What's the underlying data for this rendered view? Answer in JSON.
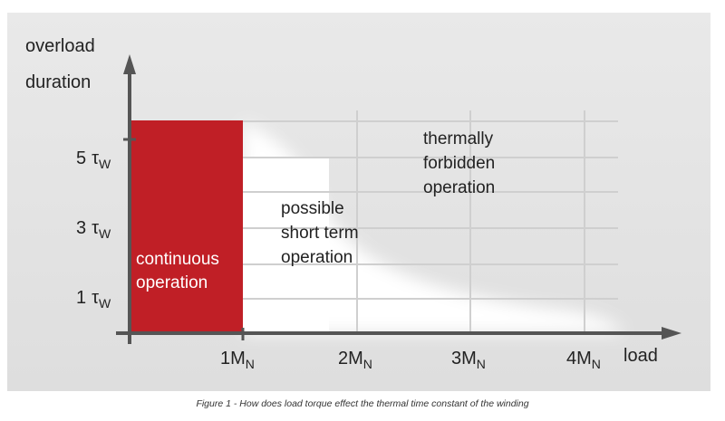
{
  "y_axis": {
    "label_line1": "overload",
    "label_line2": "duration"
  },
  "y_ticks": [
    {
      "num": "5",
      "sym": "τ",
      "sub": "W"
    },
    {
      "num": "3",
      "sym": "τ",
      "sub": "W"
    },
    {
      "num": "1",
      "sym": "τ",
      "sub": "W"
    }
  ],
  "x_ticks": [
    {
      "base": "1M",
      "sub": "N"
    },
    {
      "base": "2M",
      "sub": "N"
    },
    {
      "base": "3M",
      "sub": "N"
    },
    {
      "base": "4M",
      "sub": "N"
    }
  ],
  "x_axis": {
    "label": "load"
  },
  "regions": {
    "continuous": {
      "line1": "continuous",
      "line2": "operation",
      "color": "#c01f26"
    },
    "short_term": {
      "line1": "possible",
      "line2": "short term",
      "line3": "operation"
    },
    "forbidden": {
      "line1": "thermally",
      "line2": "forbidden",
      "line3": "operation"
    }
  },
  "caption": "Figure 1 - How does load torque effect the thermal time constant of the winding"
}
